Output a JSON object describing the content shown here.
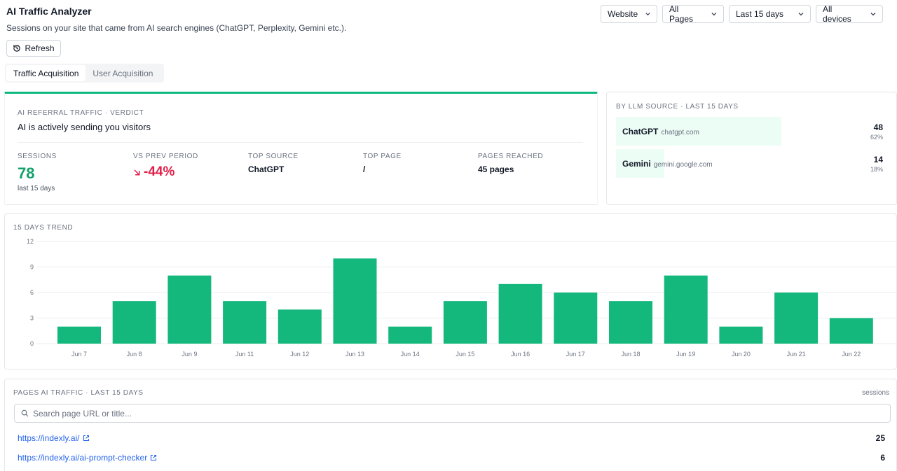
{
  "header": {
    "title": "AI Traffic Analyzer",
    "subtitle": "Sessions on your site that came from AI search engines (ChatGPT, Perplexity, Gemini etc.).",
    "refresh_label": "Refresh"
  },
  "tabs": [
    {
      "label": "Traffic Acquisition",
      "active": true
    },
    {
      "label": "User Acquisition",
      "active": false
    }
  ],
  "filters": [
    {
      "label": "Website"
    },
    {
      "label": "All Pages"
    },
    {
      "label": "Last 15 days"
    },
    {
      "label": "All devices"
    }
  ],
  "verdict": {
    "label": "AI REFERRAL TRAFFIC · VERDICT",
    "headline": "AI is actively sending you visitors",
    "sessions_label": "SESSIONS",
    "sessions_value": "78",
    "sessions_sub": "last 15 days",
    "change_label": "VS PREV PERIOD",
    "change_value": "-44%",
    "top_source_label": "TOP SOURCE",
    "top_source_value": "ChatGPT",
    "top_page_label": "TOP PAGE",
    "top_page_value": "/",
    "pages_reached_label": "PAGES REACHED",
    "pages_reached_value": "45 pages"
  },
  "sources": {
    "label": "BY LLM SOURCE · LAST 15 DAYS",
    "items": [
      {
        "name": "ChatGPT",
        "domain": "chatgpt.com",
        "count": "48",
        "pct": "62%",
        "share": 0.62
      },
      {
        "name": "Gemini",
        "domain": "gemini.google.com",
        "count": "14",
        "pct": "18%",
        "share": 0.18
      }
    ]
  },
  "trend": {
    "label": "15 DAYS TREND"
  },
  "chart_data": {
    "type": "bar",
    "categories": [
      "Jun 7",
      "Jun 8",
      "Jun 9",
      "Jun 11",
      "Jun 12",
      "Jun 13",
      "Jun 14",
      "Jun 15",
      "Jun 16",
      "Jun 17",
      "Jun 18",
      "Jun 19",
      "Jun 20",
      "Jun 21",
      "Jun 22"
    ],
    "values": [
      2,
      5,
      8,
      5,
      4,
      10,
      2,
      5,
      7,
      6,
      5,
      8,
      2,
      6,
      3
    ],
    "ylim": [
      0,
      12
    ],
    "yticks": [
      "0",
      "3",
      "6",
      "9",
      "12"
    ],
    "grid": true,
    "color": "#14b87d"
  },
  "pages": {
    "label": "PAGES AI TRAFFIC · LAST 15 DAYS",
    "metric_label": "sessions",
    "search_placeholder": "Search page URL or title...",
    "rows": [
      {
        "url": "https://indexly.ai/",
        "count": "25"
      },
      {
        "url": "https://indexly.ai/ai-prompt-checker",
        "count": "6"
      }
    ]
  },
  "colors": {
    "accent": "#10b981",
    "negative": "#e11d48",
    "link": "#2563eb"
  }
}
